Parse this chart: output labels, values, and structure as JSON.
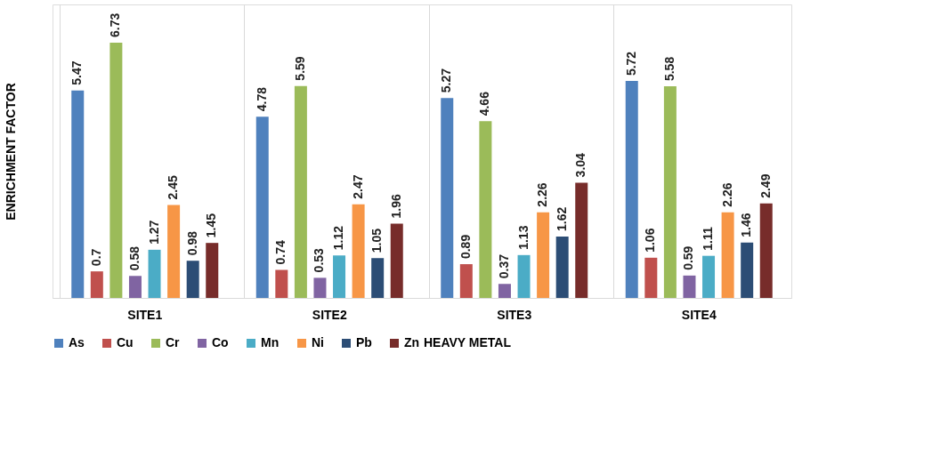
{
  "chart_data": {
    "type": "bar",
    "ylabel": "ENRICHMENT FACTOR",
    "legend_title": "HEAVY METAL",
    "categories": [
      "SITE1",
      "SITE2",
      "SITE3",
      "SITE4"
    ],
    "series": [
      {
        "name": "As",
        "color": "#4f81bd",
        "values": [
          5.47,
          4.78,
          5.27,
          5.72
        ]
      },
      {
        "name": "Cu",
        "color": "#c0504d",
        "values": [
          0.7,
          0.74,
          0.89,
          1.06
        ]
      },
      {
        "name": "Cr",
        "color": "#9bbb59",
        "values": [
          6.73,
          5.59,
          4.66,
          5.58
        ]
      },
      {
        "name": "Co",
        "color": "#8064a2",
        "values": [
          0.58,
          0.53,
          0.37,
          0.59
        ]
      },
      {
        "name": "Mn",
        "color": "#4bacc6",
        "values": [
          1.27,
          1.12,
          1.13,
          1.11
        ]
      },
      {
        "name": "Ni",
        "color": "#f79646",
        "values": [
          2.45,
          2.47,
          2.26,
          2.26
        ]
      },
      {
        "name": "Pb",
        "color": "#2c4d75",
        "values": [
          0.98,
          1.05,
          1.62,
          1.46
        ]
      },
      {
        "name": "Zn",
        "color": "#772c2a",
        "values": [
          1.45,
          1.96,
          3.04,
          2.49
        ]
      }
    ],
    "data_labels": true,
    "grid": "x",
    "legend": "bottom"
  }
}
